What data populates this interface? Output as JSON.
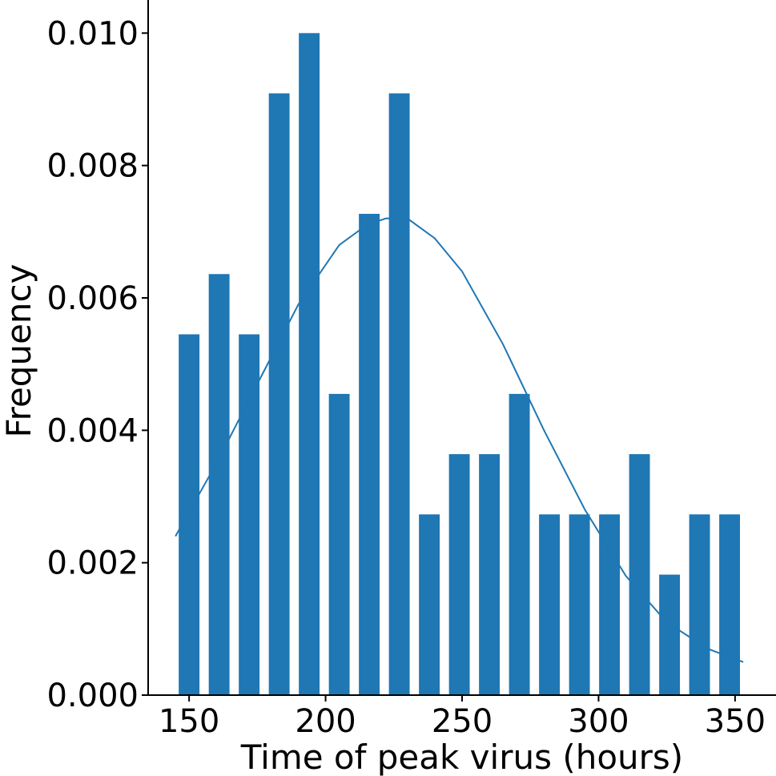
{
  "chart_data": {
    "type": "bar",
    "title": "",
    "xlabel": "Time of peak virus (hours)",
    "ylabel": "Frequency",
    "xlim": [
      135,
      365
    ],
    "ylim": [
      0,
      0.0105
    ],
    "grid": false,
    "legend": "none",
    "x_ticks": [
      150,
      200,
      250,
      300,
      350
    ],
    "x_tick_labels": [
      "150",
      "200",
      "250",
      "300",
      "350"
    ],
    "y_ticks": [
      0,
      0.002,
      0.004,
      0.006,
      0.008,
      0.01
    ],
    "y_tick_labels": [
      "0.000",
      "0.002",
      "0.004",
      "0.006",
      "0.008",
      "0.010"
    ],
    "bar_width": 7.6,
    "bar_color": "#1f77b4",
    "series": [
      {
        "type": "bar",
        "x": [
          150,
          161,
          172,
          183,
          194,
          205,
          216,
          227,
          238,
          249,
          260,
          271,
          282,
          293,
          304,
          315,
          326,
          337,
          348
        ],
        "values": [
          0.00545,
          0.00636,
          0.00545,
          0.00909,
          0.01,
          0.00455,
          0.00727,
          0.00909,
          0.00273,
          0.00364,
          0.00364,
          0.00455,
          0.00273,
          0.00273,
          0.00273,
          0.00364,
          0.00182,
          0.00273,
          0.00273
        ]
      },
      {
        "type": "line",
        "color": "#1f77b4",
        "x": [
          145,
          160,
          175,
          190,
          205,
          215,
          222,
          230,
          240,
          250,
          265,
          280,
          295,
          310,
          325,
          340,
          353
        ],
        "values": [
          0.0024,
          0.0035,
          0.0047,
          0.0059,
          0.0068,
          0.0071,
          0.0072,
          0.0072,
          0.0069,
          0.0064,
          0.0053,
          0.004,
          0.0028,
          0.0018,
          0.0011,
          0.0007,
          0.0005
        ]
      }
    ]
  }
}
